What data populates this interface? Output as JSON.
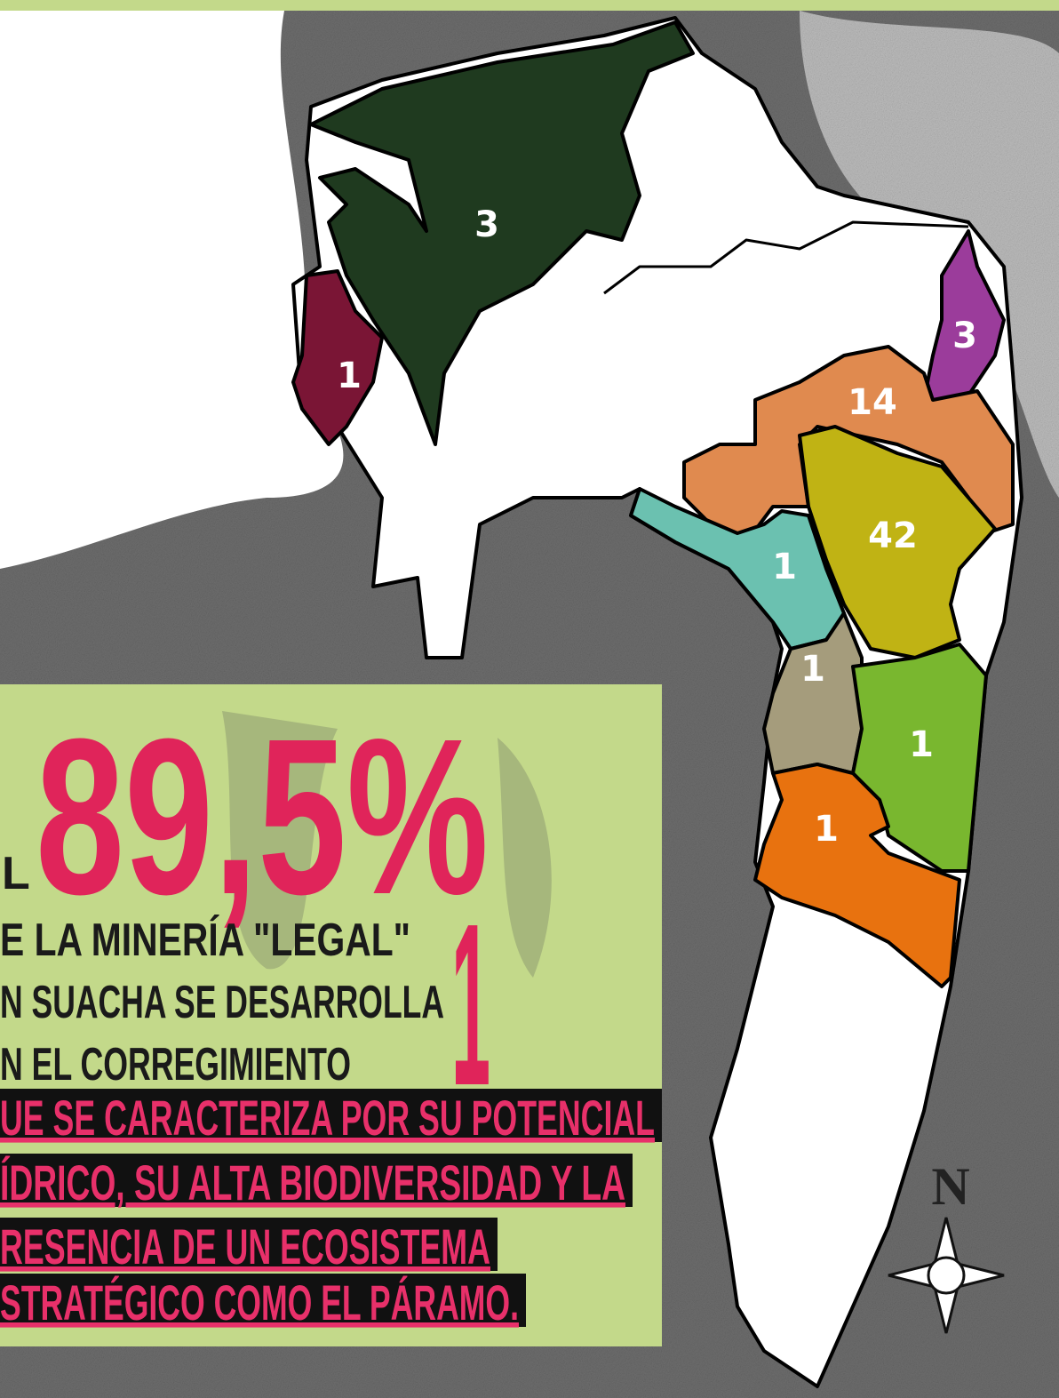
{
  "map": {
    "regions": [
      {
        "label": 3
      },
      {
        "label": 1
      },
      {
        "label": 3
      },
      {
        "label": 14
      },
      {
        "label": 42
      },
      {
        "label": 1
      },
      {
        "label": 1
      },
      {
        "label": 1
      },
      {
        "label": 1
      }
    ]
  },
  "callout": {
    "prefix": "L",
    "percentage": "89,5%",
    "corregimiento": "1",
    "lines": [
      "E LA MINERÍA \"LEGAL\"",
      "N SUACHA SE DESARROLLA",
      "N EL CORREGIMIENTO"
    ],
    "highlight_lines": [
      "UE SE CARACTERIZA POR SU POTENCIAL",
      "ÍDRICO, SU ALTA BIODIVERSIDAD Y LA",
      "RESENCIA DE UN ECOSISTEMA",
      "STRATÉGICO COMO EL PÁRAMO."
    ]
  },
  "compass": {
    "north": "N"
  }
}
